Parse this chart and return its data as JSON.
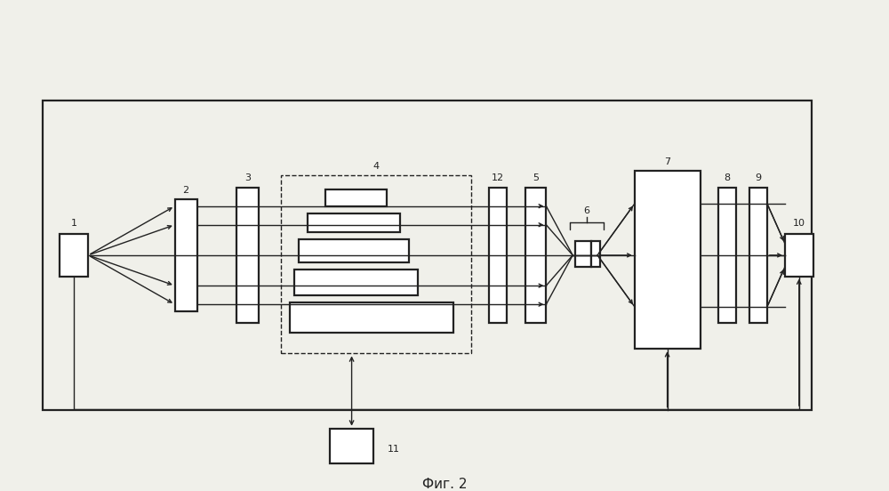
{
  "bg_color": "#f0f0ea",
  "border_color": "#222222",
  "fig_caption": "Фиг. 2",
  "fig_width": 10.0,
  "fig_height": 5.52,
  "dpi": 100
}
